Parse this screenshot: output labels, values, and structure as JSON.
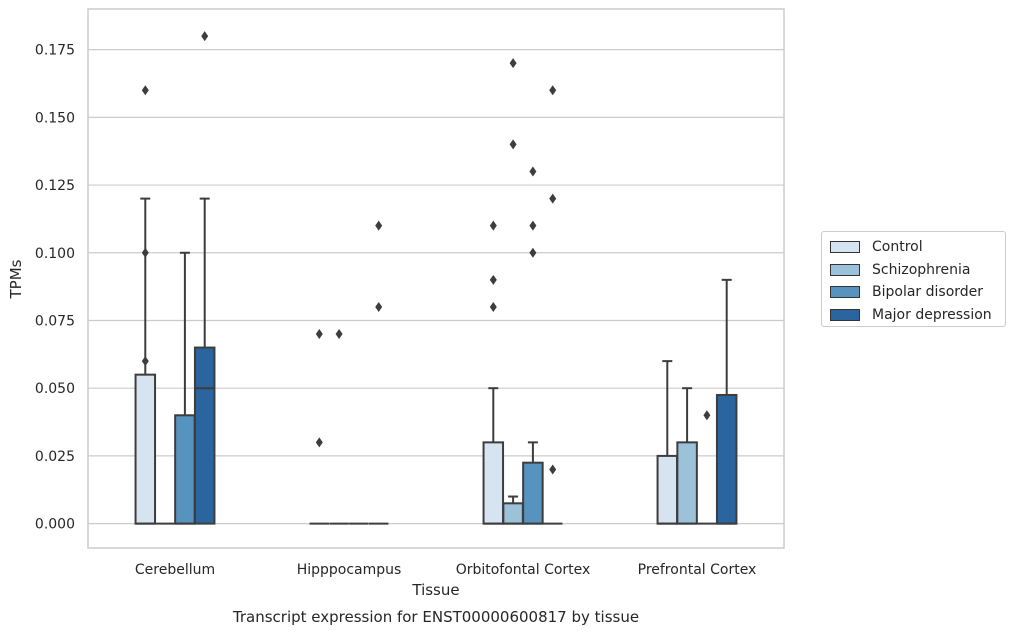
{
  "chart_data": {
    "type": "box",
    "caption": "Transcript expression for ENST00000600817 by tissue",
    "xlabel": "Tissue",
    "ylabel": "TPMs",
    "ylim": [
      -0.009,
      0.19
    ],
    "yticks": [
      0.0,
      0.025,
      0.05,
      0.075,
      0.1,
      0.125,
      0.15,
      0.175
    ],
    "ytick_labels": [
      "0.000",
      "0.025",
      "0.050",
      "0.075",
      "0.100",
      "0.125",
      "0.150",
      "0.175"
    ],
    "categories": [
      "Cerebellum",
      "Hipppocampus",
      "Orbitofontal Cortex",
      "Prefrontal Cortex"
    ],
    "grid": "horizontal",
    "legend_position": "right",
    "series": [
      {
        "name": "Control",
        "color": "#d6e4f1",
        "boxes": [
          {
            "q1": 0.0,
            "median": 0.0,
            "q3": 0.055,
            "whisker_low": 0.0,
            "whisker_high": 0.12,
            "outliers": [
              0.06,
              0.1,
              0.16
            ]
          },
          {
            "q1": 0.0,
            "median": 0.0,
            "q3": 0.0,
            "whisker_low": 0.0,
            "whisker_high": 0.0,
            "outliers": [
              0.03,
              0.07
            ]
          },
          {
            "q1": 0.0,
            "median": 0.0,
            "q3": 0.03,
            "whisker_low": 0.0,
            "whisker_high": 0.05,
            "outliers": [
              0.08,
              0.09,
              0.11
            ]
          },
          {
            "q1": 0.0,
            "median": 0.0,
            "q3": 0.025,
            "whisker_low": 0.0,
            "whisker_high": 0.06,
            "outliers": []
          }
        ]
      },
      {
        "name": "Schizophrenia",
        "color": "#9cc2da",
        "boxes": [
          {
            "q1": 0.0,
            "median": 0.0,
            "q3": 0.0,
            "whisker_low": 0.0,
            "whisker_high": 0.0,
            "outliers": []
          },
          {
            "q1": 0.0,
            "median": 0.0,
            "q3": 0.0,
            "whisker_low": 0.0,
            "whisker_high": 0.0,
            "outliers": [
              0.07
            ]
          },
          {
            "q1": 0.0,
            "median": 0.0,
            "q3": 0.0075,
            "whisker_low": 0.0,
            "whisker_high": 0.01,
            "outliers": [
              0.14,
              0.17
            ]
          },
          {
            "q1": 0.0,
            "median": 0.0,
            "q3": 0.03,
            "whisker_low": 0.0,
            "whisker_high": 0.05,
            "outliers": []
          }
        ]
      },
      {
        "name": "Bipolar disorder",
        "color": "#5693bf",
        "boxes": [
          {
            "q1": 0.0,
            "median": 0.0,
            "q3": 0.04,
            "whisker_low": 0.0,
            "whisker_high": 0.1,
            "outliers": []
          },
          {
            "q1": 0.0,
            "median": 0.0,
            "q3": 0.0,
            "whisker_low": 0.0,
            "whisker_high": 0.0,
            "outliers": []
          },
          {
            "q1": 0.0,
            "median": 0.0,
            "q3": 0.0225,
            "whisker_low": 0.0,
            "whisker_high": 0.03,
            "outliers": [
              0.1,
              0.11,
              0.13
            ]
          },
          {
            "q1": 0.0,
            "median": 0.0,
            "q3": 0.0,
            "whisker_low": 0.0,
            "whisker_high": 0.0,
            "outliers": [
              0.04
            ]
          }
        ]
      },
      {
        "name": "Major depression",
        "color": "#2a65a0",
        "boxes": [
          {
            "q1": 0.0,
            "median": 0.05,
            "q3": 0.065,
            "whisker_low": 0.0,
            "whisker_high": 0.12,
            "outliers": [
              0.18
            ]
          },
          {
            "q1": 0.0,
            "median": 0.0,
            "q3": 0.0,
            "whisker_low": 0.0,
            "whisker_high": 0.0,
            "outliers": [
              0.08,
              0.11
            ]
          },
          {
            "q1": 0.0,
            "median": 0.0,
            "q3": 0.0,
            "whisker_low": 0.0,
            "whisker_high": 0.0,
            "outliers": [
              0.02,
              0.12,
              0.16
            ]
          },
          {
            "q1": 0.0,
            "median": 0.0,
            "q3": 0.0475,
            "whisker_low": 0.0,
            "whisker_high": 0.09,
            "outliers": []
          }
        ]
      }
    ]
  }
}
